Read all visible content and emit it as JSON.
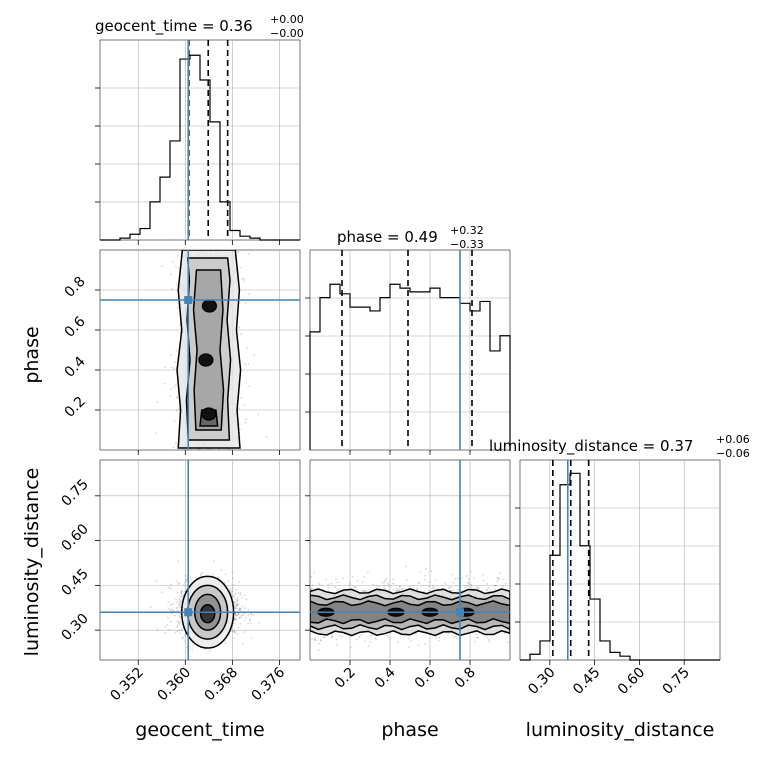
{
  "chart_data": {
    "type": "corner",
    "parameters": [
      "geocent_time",
      "phase",
      "luminosity_distance"
    ],
    "truths": {
      "geocent_time": 0.3605,
      "phase": 0.75,
      "luminosity_distance": 0.36
    },
    "axis_labels": {
      "geocent_time": "geocent_time",
      "phase": "phase",
      "luminosity_distance": "luminosity_distance"
    },
    "ranges": {
      "geocent_time": [
        0.3455,
        0.3795
      ],
      "phase": [
        0.0,
        1.0
      ],
      "luminosity_distance": [
        0.2,
        0.87
      ]
    },
    "ticks": {
      "geocent_time": {
        "values": [
          0.352,
          0.36,
          0.368,
          0.376
        ],
        "labels": [
          "0.352",
          "0.360",
          "0.368",
          "0.376"
        ]
      },
      "phase": {
        "values": [
          0.2,
          0.4,
          0.6,
          0.8
        ],
        "labels": [
          "0.2",
          "0.4",
          "0.6",
          "0.8"
        ]
      },
      "luminosity_distance": {
        "values": [
          0.3,
          0.45,
          0.6,
          0.75
        ],
        "labels": [
          "0.30",
          "0.45",
          "0.60",
          "0.75"
        ]
      }
    },
    "titles": {
      "geocent_time": {
        "main": "geocent_time = 0.36",
        "sup": "+0.00",
        "sub": "−0.00"
      },
      "phase": {
        "main": "phase = 0.49",
        "sup": "+0.32",
        "sub": "−0.33"
      },
      "luminosity_distance": {
        "main": "luminosity_distance = 0.37",
        "sup": "+0.06",
        "sub": "−0.06"
      }
    },
    "quantiles": {
      "geocent_time": [
        0.3606,
        0.3639,
        0.3672
      ],
      "phase": [
        0.16,
        0.49,
        0.81
      ],
      "luminosity_distance": [
        0.31,
        0.37,
        0.43
      ]
    },
    "histograms": {
      "geocent_time": {
        "edges": [
          0.3455,
          0.3472,
          0.3489,
          0.3506,
          0.3523,
          0.354,
          0.3557,
          0.3574,
          0.3591,
          0.3608,
          0.3625,
          0.3642,
          0.3659,
          0.3676,
          0.3693,
          0.371,
          0.3727,
          0.3744,
          0.3761,
          0.3778,
          0.3795
        ],
        "counts": [
          0.0,
          0.0,
          0.01,
          0.03,
          0.06,
          0.2,
          0.33,
          0.52,
          0.95,
          0.97,
          0.84,
          0.62,
          0.2,
          0.05,
          0.02,
          0.01,
          0.0,
          0.0,
          0.0,
          0.0
        ],
        "ylim": [
          0,
          1.05
        ]
      },
      "phase": {
        "edges": [
          0.0,
          0.05,
          0.1,
          0.15,
          0.2,
          0.25,
          0.3,
          0.35,
          0.4,
          0.45,
          0.5,
          0.55,
          0.6,
          0.65,
          0.7,
          0.75,
          0.8,
          0.85,
          0.9,
          0.95,
          1.0
        ],
        "counts": [
          0.62,
          0.8,
          0.87,
          0.82,
          0.75,
          0.75,
          0.73,
          0.8,
          0.87,
          0.85,
          0.83,
          0.83,
          0.85,
          0.8,
          0.8,
          0.77,
          0.73,
          0.78,
          0.52,
          0.6
        ],
        "ylim": [
          0,
          1.05
        ]
      },
      "luminosity_distance": {
        "edges": [
          0.2,
          0.2335,
          0.267,
          0.3005,
          0.334,
          0.3675,
          0.401,
          0.4345,
          0.468,
          0.5015,
          0.535,
          0.5685,
          0.602,
          0.6355,
          0.669,
          0.7025,
          0.736,
          0.7695,
          0.803,
          0.8365,
          0.87
        ],
        "counts": [
          0.0,
          0.03,
          0.1,
          0.55,
          0.92,
          0.98,
          0.6,
          0.32,
          0.1,
          0.04,
          0.02,
          0.0,
          0.0,
          0.0,
          0.0,
          0.0,
          0.0,
          0.0,
          0.0,
          0.0
        ],
        "ylim": [
          0,
          1.05
        ]
      }
    },
    "contours": {
      "phase|geocent_time": {
        "levels": [
          [
            [
              0.3588,
              0.01
            ],
            [
              0.3592,
              0.2
            ],
            [
              0.3586,
              0.4
            ],
            [
              0.3594,
              0.6
            ],
            [
              0.3588,
              0.8
            ],
            [
              0.3595,
              1.0
            ],
            [
              0.3685,
              1.0
            ],
            [
              0.3692,
              0.8
            ],
            [
              0.3687,
              0.6
            ],
            [
              0.3694,
              0.4
            ],
            [
              0.3688,
              0.2
            ],
            [
              0.3693,
              0.01
            ]
          ],
          [
            [
              0.3605,
              0.05
            ],
            [
              0.3602,
              0.25
            ],
            [
              0.3608,
              0.45
            ],
            [
              0.3603,
              0.65
            ],
            [
              0.3607,
              0.85
            ],
            [
              0.3604,
              0.96
            ],
            [
              0.3672,
              0.96
            ],
            [
              0.3676,
              0.85
            ],
            [
              0.3671,
              0.65
            ],
            [
              0.3677,
              0.45
            ],
            [
              0.3672,
              0.25
            ],
            [
              0.3675,
              0.05
            ]
          ],
          [
            [
              0.3618,
              0.1
            ],
            [
              0.3615,
              0.3
            ],
            [
              0.362,
              0.5
            ],
            [
              0.3614,
              0.7
            ],
            [
              0.3619,
              0.9
            ],
            [
              0.366,
              0.9
            ],
            [
              0.3664,
              0.7
            ],
            [
              0.3659,
              0.5
            ],
            [
              0.3665,
              0.3
            ],
            [
              0.3661,
              0.1
            ]
          ],
          [
            [
              0.3625,
              0.12
            ],
            [
              0.3628,
              0.2
            ],
            [
              0.3652,
              0.2
            ],
            [
              0.3655,
              0.12
            ]
          ]
        ],
        "peaks": [
          [
            0.3635,
            0.45
          ],
          [
            0.364,
            0.18
          ],
          [
            0.3641,
            0.72
          ]
        ]
      },
      "luminosity_distance|geocent_time": {
        "ellipses": [
          {
            "cx": 0.3638,
            "cy": 0.36,
            "rx": 0.0044,
            "ry": 0.12
          },
          {
            "cx": 0.3638,
            "cy": 0.36,
            "rx": 0.0034,
            "ry": 0.09
          },
          {
            "cx": 0.3638,
            "cy": 0.36,
            "rx": 0.0022,
            "ry": 0.06
          },
          {
            "cx": 0.3638,
            "cy": 0.355,
            "rx": 0.0012,
            "ry": 0.03
          }
        ]
      },
      "luminosity_distance|phase": {
        "bands": [
          [
            0.29,
            0.43
          ],
          [
            0.31,
            0.41
          ],
          [
            0.33,
            0.39
          ]
        ],
        "peaks": [
          [
            0.08,
            0.36
          ],
          [
            0.43,
            0.36
          ],
          [
            0.6,
            0.36
          ],
          [
            0.78,
            0.36
          ]
        ]
      }
    },
    "scatter_spread": {
      "geocent_time": {
        "mean": 0.3639,
        "sd": 0.0026
      },
      "phase": {
        "min": 0.0,
        "max": 1.0
      },
      "luminosity_distance": {
        "mean": 0.37,
        "sd": 0.045
      }
    },
    "colors": {
      "truth": "#4682b4",
      "hist": "#000000",
      "grid": "#b0b0b0",
      "scatter": "#888888"
    }
  }
}
